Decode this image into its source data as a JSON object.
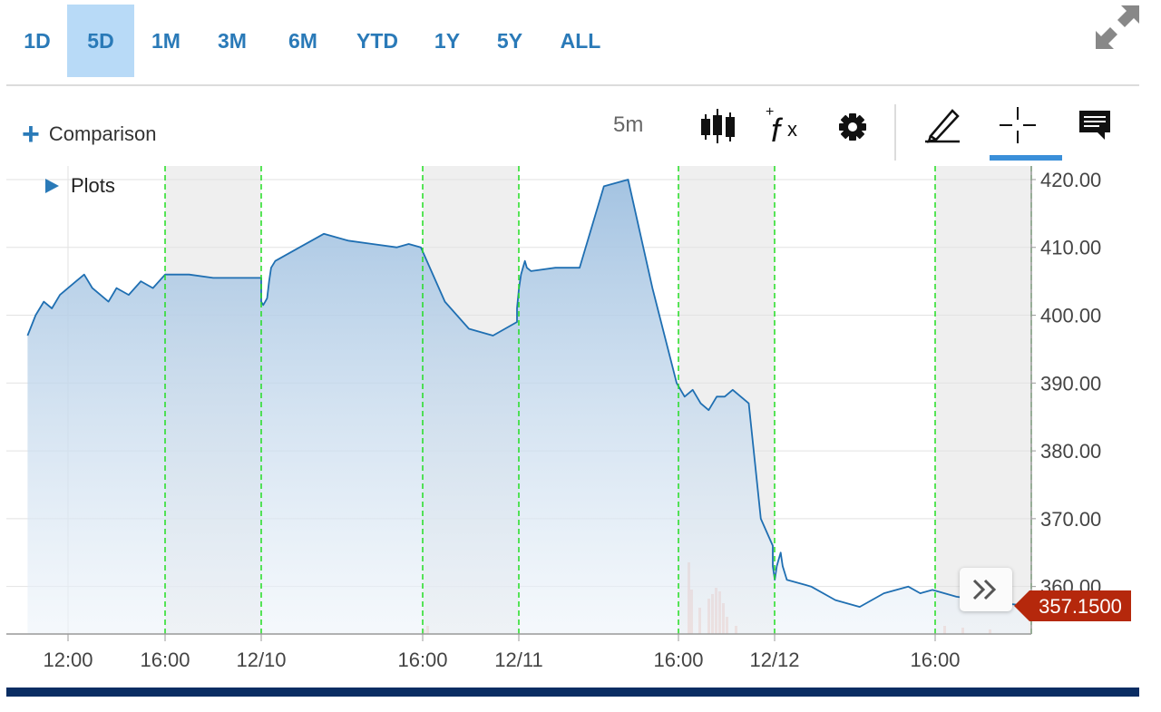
{
  "range_tabs": [
    {
      "label": "1D",
      "active": false
    },
    {
      "label": "5D",
      "active": true
    },
    {
      "label": "1M",
      "active": false
    },
    {
      "label": "3M",
      "active": false
    },
    {
      "label": "6M",
      "active": false
    },
    {
      "label": "YTD",
      "active": false
    },
    {
      "label": "1Y",
      "active": false
    },
    {
      "label": "5Y",
      "active": false
    },
    {
      "label": "ALL",
      "active": false
    }
  ],
  "toolbar": {
    "comparison_label": "Comparison",
    "period_label": "5m",
    "plots_label": "Plots",
    "icons": [
      "candlestick-icon",
      "study-fx-icon",
      "gear-icon",
      "pencil-icon",
      "crosshair-icon",
      "comment-icon",
      "expand-icon",
      "double-chevron-right-icon"
    ]
  },
  "colors": {
    "accent": "#2a7ab8",
    "line": "#1f6fb2",
    "area_top": "#9fc0e0",
    "session_shade": "#efefef",
    "session_marker": "#22dd22",
    "price_tag": "#b5280c",
    "bottom_bar": "#0a2d63"
  },
  "chart_data": {
    "type": "area",
    "last_price": "357.1500",
    "ylim": [
      353,
      422
    ],
    "y_ticks": [
      "420.00",
      "410.00",
      "400.00",
      "390.00",
      "380.00",
      "370.00",
      "360.00"
    ],
    "x_ticks": [
      "12:00",
      "16:00",
      "12/10",
      "16:00",
      "12/11",
      "16:00",
      "12/12",
      "16:00"
    ],
    "grid": true,
    "shaded_after_hours": true,
    "series": [
      {
        "x": [
          "12/09 10:20",
          "12/09 10:40",
          "12/09 11:00",
          "12/09 11:20",
          "12/09 11:40",
          "12/09 12:00",
          "12/09 12:20",
          "12/09 12:40",
          "12/09 13:00",
          "12/09 13:20",
          "12/09 13:40",
          "12/09 14:00",
          "12/09 14:30",
          "12/09 15:00",
          "12/09 15:30",
          "12/09 16:00",
          "12/09 17:00",
          "12/09 18:00",
          "12/09 19:00",
          "12/09 20:00",
          "12/10 04:00",
          "12/10 05:00",
          "12/10 06:00",
          "12/10 07:00",
          "12/10 08:00",
          "12/10 09:00",
          "12/10 10:00",
          "12/10 11:00",
          "12/10 12:00",
          "12/10 13:00",
          "12/10 14:00",
          "12/10 15:00",
          "12/10 15:30",
          "12/10 16:00",
          "12/10 17:00",
          "12/10 18:00",
          "12/10 19:00",
          "12/10 20:00",
          "12/11 04:00",
          "12/11 05:00",
          "12/11 06:00",
          "12/11 07:00",
          "12/11 08:00",
          "12/11 09:00",
          "12/11 10:00",
          "12/11 11:00",
          "12/11 12:00",
          "12/11 13:00",
          "12/11 14:00",
          "12/11 15:00",
          "12/11 16:00",
          "12/11 16:20",
          "12/11 16:40",
          "12/11 17:00",
          "12/11 17:20",
          "12/11 17:40",
          "12/11 18:00",
          "12/11 18:20",
          "12/11 18:40",
          "12/11 19:00",
          "12/11 19:30",
          "12/11 20:00",
          "12/12 04:00",
          "12/12 05:00",
          "12/12 06:00",
          "12/12 07:00",
          "12/12 08:00",
          "12/12 09:00",
          "12/12 10:00",
          "12/12 11:00",
          "12/12 12:00",
          "12/12 13:00",
          "12/12 14:00",
          "12/12 15:00",
          "12/12 15:30",
          "12/12 16:00",
          "12/12 17:00",
          "12/12 18:00",
          "12/12 19:00",
          "12/12 20:00"
        ],
        "y": [
          397,
          400,
          402,
          401,
          403,
          404,
          405,
          406,
          404,
          403,
          402,
          404,
          403,
          405,
          404,
          406,
          406,
          405.5,
          405.5,
          405.5,
          402,
          401.5,
          402,
          402.5,
          405,
          407,
          408,
          410,
          412,
          411,
          410.5,
          410,
          410.5,
          410,
          402,
          398,
          397,
          399,
          401,
          404,
          406,
          407,
          408,
          407,
          406.5,
          407,
          407,
          419,
          420,
          404,
          390,
          388,
          389,
          387,
          386,
          388,
          388,
          389,
          388,
          387,
          370,
          366,
          363,
          361,
          363,
          364,
          365,
          363,
          361,
          360,
          358,
          357,
          359,
          360,
          359,
          359.5,
          358.5,
          358,
          357.5,
          357.15
        ]
      }
    ],
    "volume_present": true
  }
}
